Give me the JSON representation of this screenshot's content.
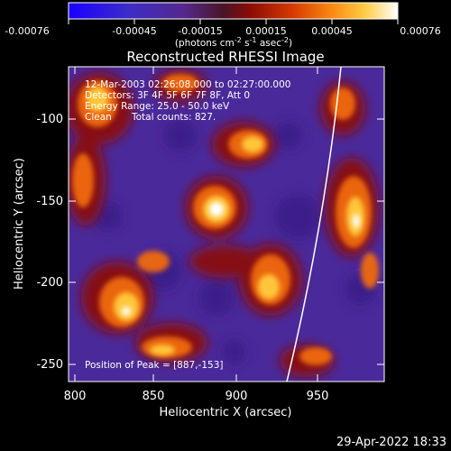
{
  "colorbar": {
    "ticks": [
      "-0.00076",
      "-0.00045",
      "-0.00015",
      "0.00015",
      "0.00045",
      "0.00076"
    ],
    "unit_prefix": "(photons cm",
    "unit_exp1": "-2",
    "unit_mid": " s",
    "unit_exp2": "-1",
    "unit_mid2": " asec",
    "unit_exp3": "-2",
    "unit_suffix": ")"
  },
  "title": "Reconstructed RHESSI Image",
  "annotations": {
    "line1": "12-Mar-2003 02:26:08.000 to 02:27:00.000",
    "line2": "Detectors: 3F 4F 5F 6F 7F 8F, Att 0",
    "line3": "Energy Range: 25.0 - 50.0 keV",
    "line4_a": "Clean",
    "line4_b": "Total counts: 827.",
    "peak": "Position of Peak = [887,-153]"
  },
  "x_axis": {
    "label": "Heliocentric X (arcsec)",
    "ticks": [
      "800",
      "850",
      "900",
      "950"
    ]
  },
  "y_axis": {
    "label": "Heliocentric Y (arcsec)",
    "ticks": [
      "-100",
      "-150",
      "-200",
      "-250"
    ]
  },
  "footer_date": "29-Apr-2022 18:33"
}
